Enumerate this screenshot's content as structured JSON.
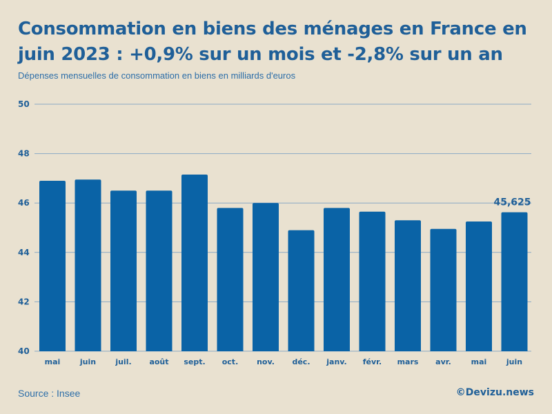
{
  "header": {
    "title": "Consommation en biens des ménages en France en juin 2023 : +0,9% sur un mois et -2,8% sur un an",
    "subtitle": "Dépenses mensuelles de consommation en biens en milliards d'euros"
  },
  "footer": {
    "source": "Source : Insee",
    "brand": "©Devizu.news"
  },
  "colors": {
    "bar": "#0a63a6",
    "grid": "#8aa9c4",
    "text": "#1f5f98"
  },
  "chart_data": {
    "type": "bar",
    "title": "Consommation en biens des ménages en France en juin 2023 : +0,9% sur un mois et -2,8% sur un an",
    "xlabel": "",
    "ylabel": "Dépenses mensuelles de consommation en biens en milliards d'euros",
    "ylim": [
      40,
      50
    ],
    "yticks": [
      40,
      42,
      44,
      46,
      48,
      50
    ],
    "grid": true,
    "categories": [
      "mai",
      "juin",
      "juil.",
      "août",
      "sept.",
      "oct.",
      "nov.",
      "déc.",
      "janv.",
      "févr.",
      "mars",
      "avr.",
      "mai",
      "juin"
    ],
    "values": [
      46.9,
      46.95,
      46.5,
      46.5,
      47.15,
      45.8,
      46.0,
      44.9,
      45.8,
      45.65,
      45.3,
      44.95,
      45.25,
      45.625
    ],
    "annotations": [
      {
        "index": 13,
        "text": "45,625"
      }
    ]
  }
}
